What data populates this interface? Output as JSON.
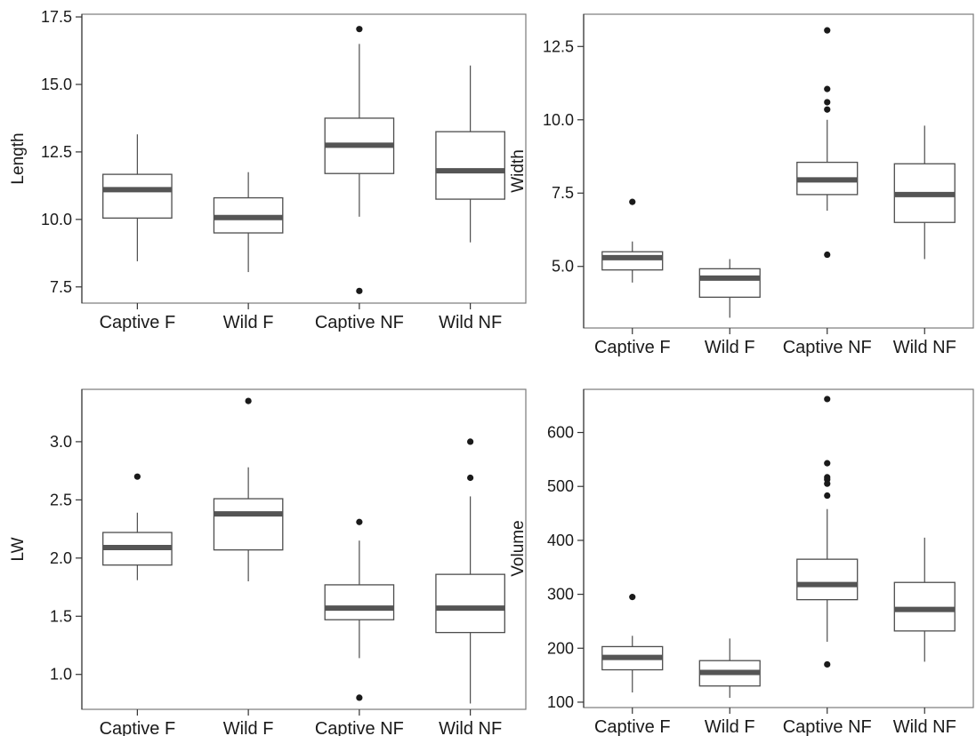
{
  "chart_data": [
    {
      "type": "box",
      "ylabel": "Length",
      "ylim": [
        6.9,
        17.6
      ],
      "yticks": [
        "7.5",
        "10.0",
        "12.5",
        "15.0",
        "17.5"
      ],
      "categories": [
        "Captive F",
        "Wild F",
        "Captive NF",
        "Wild NF"
      ],
      "boxes": [
        {
          "whisker_low": 8.45,
          "q1": 10.05,
          "median": 11.1,
          "q3": 11.67,
          "whisker_high": 13.15,
          "outliers": []
        },
        {
          "whisker_low": 8.05,
          "q1": 9.5,
          "median": 10.07,
          "q3": 10.8,
          "whisker_high": 11.75,
          "outliers": []
        },
        {
          "whisker_low": 10.1,
          "q1": 11.7,
          "median": 12.75,
          "q3": 13.75,
          "whisker_high": 16.5,
          "outliers": [
            17.05,
            7.35
          ]
        },
        {
          "whisker_low": 9.15,
          "q1": 10.75,
          "median": 11.8,
          "q3": 13.25,
          "whisker_high": 15.7,
          "outliers": []
        }
      ]
    },
    {
      "type": "box",
      "ylabel": "Width",
      "ylim": [
        2.9,
        13.6
      ],
      "yticks": [
        "5.0",
        "7.5",
        "10.0",
        "12.5"
      ],
      "categories": [
        "Captive F",
        "Wild F",
        "Captive NF",
        "Wild NF"
      ],
      "boxes": [
        {
          "whisker_low": 4.45,
          "q1": 4.88,
          "median": 5.3,
          "q3": 5.5,
          "whisker_high": 5.85,
          "outliers": [
            7.2
          ]
        },
        {
          "whisker_low": 3.25,
          "q1": 3.95,
          "median": 4.6,
          "q3": 4.92,
          "whisker_high": 5.25,
          "outliers": []
        },
        {
          "whisker_low": 6.9,
          "q1": 7.45,
          "median": 7.95,
          "q3": 8.55,
          "whisker_high": 10.0,
          "outliers": [
            13.05,
            11.05,
            10.6,
            10.35,
            5.4
          ]
        },
        {
          "whisker_low": 5.25,
          "q1": 6.5,
          "median": 7.45,
          "q3": 8.5,
          "whisker_high": 9.8,
          "outliers": []
        }
      ]
    },
    {
      "type": "box",
      "ylabel": "LW",
      "ylim": [
        0.7,
        3.45
      ],
      "yticks": [
        "1.0",
        "1.5",
        "2.0",
        "2.5",
        "3.0"
      ],
      "categories": [
        "Captive F",
        "Wild F",
        "Captive NF",
        "Wild NF"
      ],
      "boxes": [
        {
          "whisker_low": 1.81,
          "q1": 1.94,
          "median": 2.09,
          "q3": 2.22,
          "whisker_high": 2.39,
          "outliers": [
            2.7
          ]
        },
        {
          "whisker_low": 1.8,
          "q1": 2.07,
          "median": 2.38,
          "q3": 2.51,
          "whisker_high": 2.78,
          "outliers": [
            3.35
          ]
        },
        {
          "whisker_low": 1.14,
          "q1": 1.47,
          "median": 1.57,
          "q3": 1.77,
          "whisker_high": 2.15,
          "outliers": [
            2.31,
            0.8
          ]
        },
        {
          "whisker_low": 0.75,
          "q1": 1.36,
          "median": 1.57,
          "q3": 1.86,
          "whisker_high": 2.53,
          "outliers": [
            3.0,
            2.69
          ]
        }
      ]
    },
    {
      "type": "box",
      "ylabel": "Volume",
      "ylim": [
        90,
        680
      ],
      "yticks": [
        "100",
        "200",
        "300",
        "400",
        "500",
        "600"
      ],
      "categories": [
        "Captive F",
        "Wild F",
        "Captive NF",
        "Wild NF"
      ],
      "boxes": [
        {
          "whisker_low": 118,
          "q1": 160,
          "median": 183,
          "q3": 203,
          "whisker_high": 223,
          "outliers": [
            295
          ]
        },
        {
          "whisker_low": 108,
          "q1": 130,
          "median": 155,
          "q3": 177,
          "whisker_high": 218,
          "outliers": []
        },
        {
          "whisker_low": 212,
          "q1": 290,
          "median": 318,
          "q3": 365,
          "whisker_high": 458,
          "outliers": [
            662,
            543,
            517,
            513,
            505,
            483,
            170
          ]
        },
        {
          "whisker_low": 175,
          "q1": 232,
          "median": 272,
          "q3": 322,
          "whisker_high": 405,
          "outliers": []
        }
      ]
    }
  ]
}
